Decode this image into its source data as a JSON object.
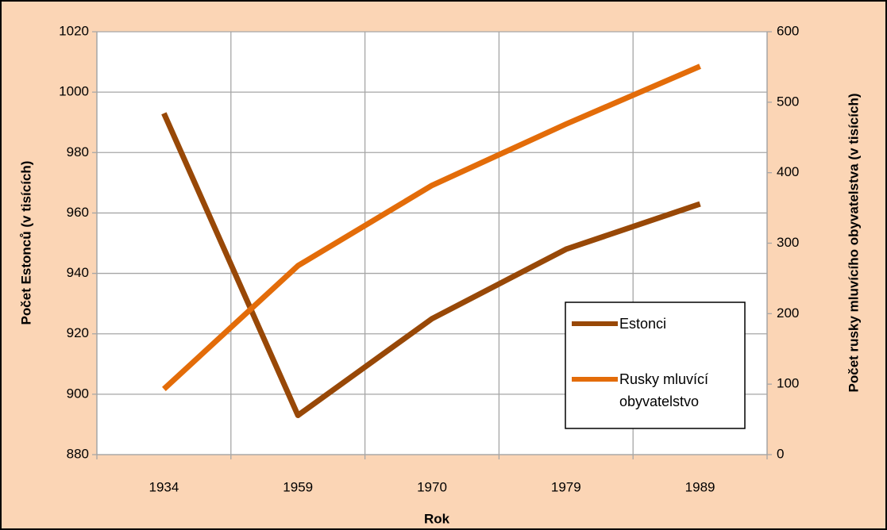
{
  "chart_data": {
    "type": "line",
    "categories": [
      "1934",
      "1959",
      "1970",
      "1979",
      "1989"
    ],
    "series": [
      {
        "name": "Estonci",
        "color": "#984807",
        "values": [
          993,
          893,
          925,
          948,
          963
        ]
      },
      {
        "name": "Rusky mluvící obyvatelstvo",
        "color": "#e36c09",
        "axis": "y2",
        "values": [
          93,
          268,
          382,
          469,
          551
        ]
      }
    ],
    "ylabel": "Počet Estonců (v tisících)",
    "y2label": "Počet rusky mluvícího obyvatelstva (v tisících)",
    "xlabel": "Rok",
    "ylim": [
      880,
      1020
    ],
    "yticks": [
      880,
      900,
      920,
      940,
      960,
      980,
      1000,
      1020
    ],
    "y2lim": [
      0,
      600
    ],
    "y2ticks": [
      0,
      100,
      200,
      300,
      400,
      500,
      600
    ],
    "grid": true,
    "legend": "lower right",
    "background": "#fbd5b5"
  }
}
